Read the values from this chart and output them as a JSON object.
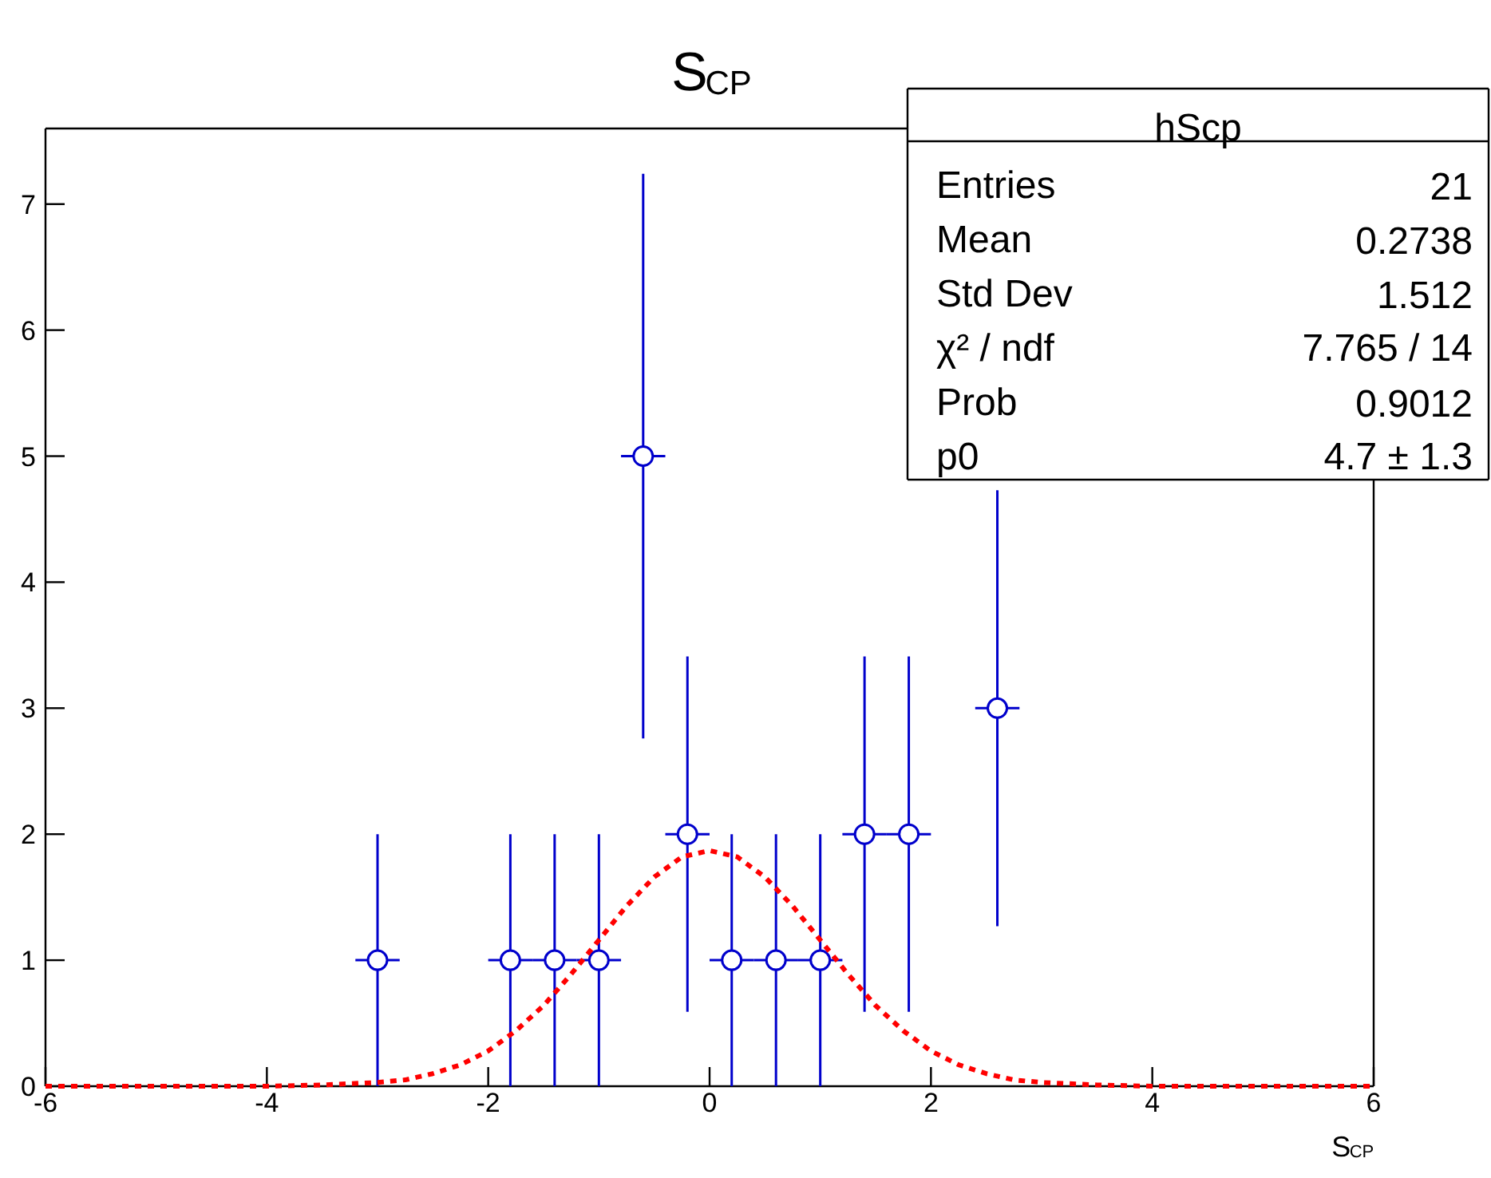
{
  "chart_data": {
    "type": "scatter",
    "title": "S$_{CP}$",
    "xlabel": "S$_{CP}$",
    "xlim": [
      -6,
      6
    ],
    "ylim": [
      0,
      7.6
    ],
    "xticks": [
      -6,
      -4,
      -2,
      0,
      2,
      4,
      6
    ],
    "yticks": [
      0,
      1,
      2,
      3,
      4,
      5,
      6,
      7
    ],
    "grid": false,
    "series": [
      {
        "color": "#0000cc",
        "marker": "circle",
        "x": [
          -3,
          -1.8,
          -1.4,
          -1.0,
          -0.6,
          -0.2,
          0.2,
          0.6,
          1.0,
          1.4,
          1.8,
          2.6
        ],
        "values": [
          1,
          1,
          1,
          1,
          5,
          2,
          1,
          1,
          1,
          2,
          2,
          3
        ],
        "errors": [
          1,
          1,
          1,
          1,
          2.24,
          1.41,
          1,
          1,
          1,
          1.41,
          1.41,
          1.73
        ],
        "xerrors": [
          0.2,
          0.2,
          0.2,
          0.2,
          0.2,
          0.2,
          0.2,
          0.2,
          0.2,
          0.2,
          0.2,
          0.2
        ]
      },
      {
        "type": "line",
        "color": "#ff0000",
        "line_style": "dashed",
        "x": [
          -6,
          -5,
          -4,
          -3.5,
          -3,
          -2.75,
          -2.5,
          -2.25,
          -2,
          -1.75,
          -1.5,
          -1.25,
          -1,
          -0.75,
          -0.5,
          -0.25,
          0,
          0.25,
          0.5,
          0.75,
          1,
          1.25,
          1.5,
          1.75,
          2,
          2.25,
          2.5,
          2.75,
          3,
          3.5,
          4,
          5,
          6
        ],
        "values": [
          0,
          0,
          0,
          0.01,
          0.03,
          0.05,
          0.1,
          0.17,
          0.28,
          0.44,
          0.64,
          0.89,
          1.16,
          1.43,
          1.66,
          1.82,
          1.87,
          1.82,
          1.66,
          1.43,
          1.16,
          0.89,
          0.64,
          0.44,
          0.28,
          0.17,
          0.1,
          0.05,
          0.03,
          0.01,
          0,
          0,
          0
        ]
      }
    ],
    "annotations": [
      "hScp",
      "Entries",
      "21",
      "Mean",
      "0.2738",
      "Std Dev",
      "1.512",
      "χ² / ndf",
      "7.765 / 14",
      "Prob",
      "0.9012",
      "p0",
      "4.7 ± 1.3"
    ]
  }
}
